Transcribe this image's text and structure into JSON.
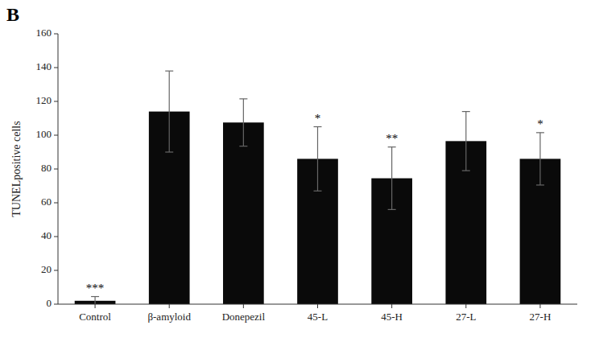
{
  "chart_data": {
    "type": "bar",
    "title": "B",
    "categories": [
      "Control",
      "β-amyloid",
      "Donepezil",
      "45-L",
      "45-H",
      "27-L",
      "27-H"
    ],
    "values": [
      2.0,
      114.0,
      107.5,
      86.0,
      74.5,
      96.5,
      86.0
    ],
    "errors": [
      2.5,
      24.0,
      14.0,
      19.0,
      18.5,
      17.5,
      15.5
    ],
    "color": "#0a0a0a",
    "ylabel": "TUNELpositive cells",
    "ylim": [
      0,
      160
    ],
    "yticks": [
      0,
      20,
      40,
      60,
      80,
      100,
      120,
      140,
      160
    ],
    "annotations": [
      {
        "text": "***",
        "category": "Control"
      },
      {
        "text": "*",
        "category": "45-L"
      },
      {
        "text": "**",
        "category": "45-H"
      },
      {
        "text": "*",
        "category": "27-H"
      }
    ],
    "grid": false
  }
}
